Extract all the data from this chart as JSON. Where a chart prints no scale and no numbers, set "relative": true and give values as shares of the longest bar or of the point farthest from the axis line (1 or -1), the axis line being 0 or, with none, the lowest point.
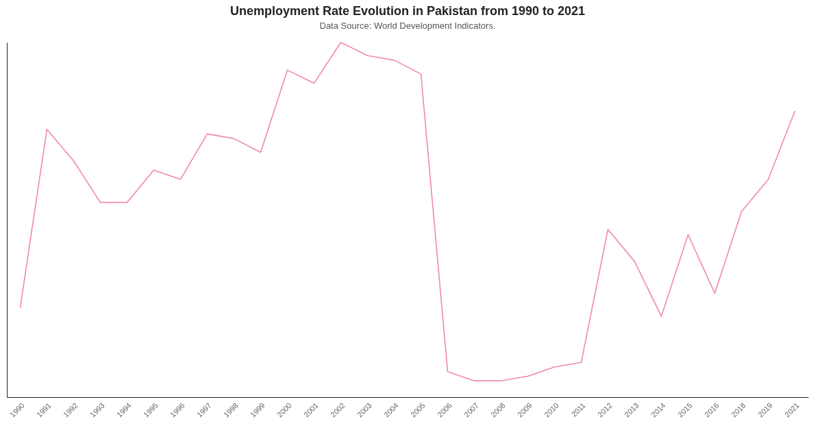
{
  "chart_data": {
    "type": "line",
    "title": "Unemployment Rate Evolution in Pakistan from 1990 to 2021",
    "subtitle": "Data Source: World Development Indicators.",
    "relative": true,
    "grid": false,
    "categories": [
      "1990",
      "1991",
      "1992",
      "1993",
      "1994",
      "1995",
      "1996",
      "1997",
      "1998",
      "1999",
      "2000",
      "2001",
      "2002",
      "2003",
      "2004",
      "2005",
      "2006",
      "2007",
      "2008",
      "2009",
      "2010",
      "2011",
      "2012",
      "2013",
      "2014",
      "2015",
      "2016",
      "2018",
      "2019",
      "2021"
    ],
    "series": [
      {
        "color": "#f088b0",
        "values": [
          0.252,
          0.755,
          0.666,
          0.549,
          0.549,
          0.64,
          0.614,
          0.742,
          0.729,
          0.69,
          0.922,
          0.885,
          1,
          0.963,
          0.95,
          0.911,
          0.072,
          0.046,
          0.046,
          0.059,
          0.085,
          0.098,
          0.473,
          0.382,
          0.228,
          0.458,
          0.293,
          0.523,
          0.614,
          0.807
        ]
      }
    ]
  }
}
